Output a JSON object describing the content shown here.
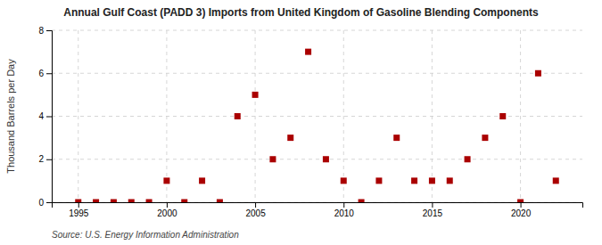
{
  "chart_data": {
    "type": "scatter",
    "title": "Annual Gulf Coast (PADD 3) Imports from United Kingdom of Gasoline Blending Components",
    "y_label": "Thousand Barrels per Day",
    "source": "Source: U.S. Energy Information Administration",
    "x": [
      1995,
      1996,
      1997,
      1998,
      1999,
      2000,
      2001,
      2002,
      2003,
      2004,
      2005,
      2006,
      2007,
      2008,
      2009,
      2010,
      2011,
      2012,
      2013,
      2014,
      2015,
      2016,
      2017,
      2018,
      2019,
      2020,
      2021,
      2022
    ],
    "values": [
      0,
      0,
      0,
      0,
      0,
      1,
      0,
      1,
      0,
      4,
      5,
      2,
      3,
      7,
      2,
      1,
      0,
      1,
      3,
      1,
      1,
      1,
      2,
      3,
      4,
      0,
      6,
      1
    ],
    "xlim": [
      1993.5,
      2023.5
    ],
    "ylim": [
      0,
      8
    ],
    "xticks": [
      1995,
      2000,
      2005,
      2010,
      2015,
      2020
    ],
    "yticks": [
      0,
      2,
      4,
      6,
      8
    ],
    "color": "#aa0000",
    "marker": "square",
    "grid": true
  }
}
